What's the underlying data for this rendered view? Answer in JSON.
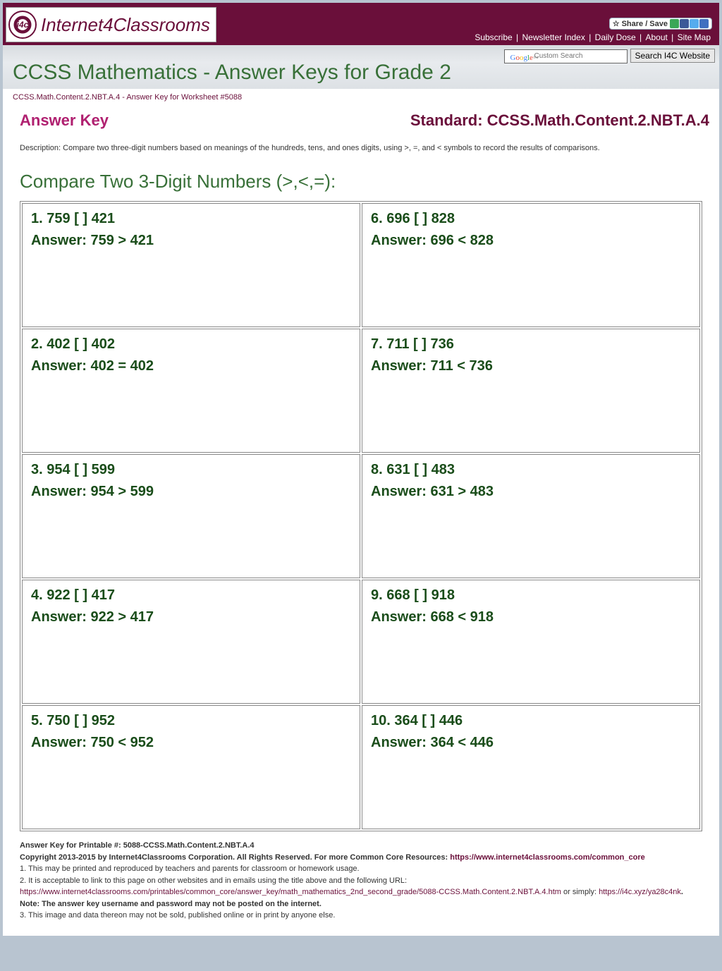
{
  "header": {
    "logo_text": "Internet4Classrooms",
    "logo_abbr": "i4c",
    "links": [
      "Subscribe",
      "Newsletter Index",
      "Daily Dose",
      "About",
      "Site Map"
    ],
    "share_label": "Share / Save"
  },
  "search": {
    "placeholder": "Custom Search",
    "button": "Search I4C Website"
  },
  "page_title": "CCSS Mathematics - Answer Keys for Grade 2",
  "breadcrumb": "CCSS.Math.Content.2.NBT.A.4 - Answer Key for Worksheet #5088",
  "answer_key_label": "Answer Key",
  "standard_label": "Standard: CCSS.Math.Content.2.NBT.A.4",
  "description": "Description: Compare two three-digit numbers based on meanings of the hundreds, tens, and ones digits, using >, =, and < symbols to record the results of comparisons.",
  "section_title": "Compare Two 3-Digit Numbers (>,<,=):",
  "problems": [
    {
      "n": "1",
      "q": "759 [   ] 421",
      "a": "759 > 421"
    },
    {
      "n": "2",
      "q": "402 [   ] 402",
      "a": "402 = 402"
    },
    {
      "n": "3",
      "q": "954 [   ] 599",
      "a": "954 > 599"
    },
    {
      "n": "4",
      "q": "922 [   ] 417",
      "a": "922 > 417"
    },
    {
      "n": "5",
      "q": "750 [   ] 952",
      "a": "750 < 952"
    },
    {
      "n": "6",
      "q": "696 [   ] 828",
      "a": "696 < 828"
    },
    {
      "n": "7",
      "q": "711 [   ] 736",
      "a": "711 < 736"
    },
    {
      "n": "8",
      "q": "631 [   ] 483",
      "a": "631 > 483"
    },
    {
      "n": "9",
      "q": "668 [   ] 918",
      "a": "668 < 918"
    },
    {
      "n": "10",
      "q": "364 [   ] 446",
      "a": "364 < 446"
    }
  ],
  "footer": {
    "line0": "Answer Key for Printable #: 5088-CCSS.Math.Content.2.NBT.A.4",
    "copyright": "Copyright 2013-2015 by Internet4Classrooms Corporation. All Rights Reserved. For more Common Core Resources: ",
    "cc_link": "https://www.internet4classrooms.com/common_core",
    "line1": "1. This may be printed and reproduced by teachers and parents for classroom or homework usage.",
    "line2": "2. It is acceptable to link to this page on other websites and in emails using the title above and the following URL:",
    "url_long": "https://www.internet4classrooms.com/printables/common_core/answer_key/math_mathematics_2nd_second_grade/5088-CCSS.Math.Content.2.NBT.A.4.htm",
    "or_simply": " or simply: ",
    "url_short": "https://i4c.xyz/ya28c4nk",
    "note": ". Note: The answer key username and password may not be posted on the internet.",
    "line3": "3. This image and data thereon may not be sold, published online or in print by anyone else."
  },
  "colors": {
    "brand": "#6a0f3a",
    "green": "#387038",
    "dark_green": "#1a4d1a",
    "pink": "#b02070"
  }
}
